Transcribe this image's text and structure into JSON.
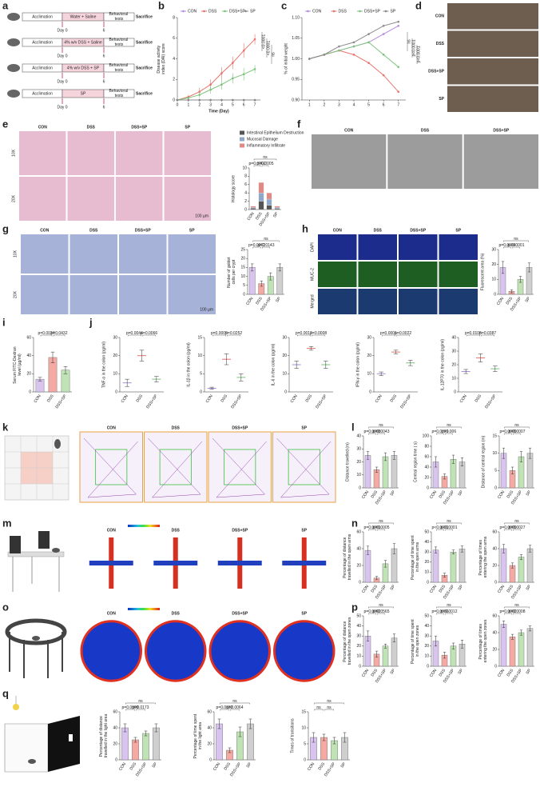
{
  "panel_letters": [
    "a",
    "b",
    "c",
    "d",
    "e",
    "f",
    "g",
    "h",
    "i",
    "j",
    "k",
    "l",
    "m",
    "n",
    "o",
    "p",
    "q"
  ],
  "schematic": {
    "rows": [
      [
        "Acclimation",
        "Water + Saline",
        "Behavioral tests",
        "Sacrifice"
      ],
      [
        "Acclimation",
        "4% w/v DSS + Saline",
        "Behavioral tests",
        "Sacrifice"
      ],
      [
        "Acclimation",
        "4% w/v DSS + SP",
        "Behavioral tests",
        "Sacrifice"
      ],
      [
        "Acclimation",
        "SP",
        "Behavioral tests",
        "Sacrifice"
      ]
    ],
    "day_labels": [
      "Day 0",
      "6"
    ]
  },
  "image_panels": [
    {
      "rows": [
        "CON",
        "DSS",
        "DSS+SP",
        "SP"
      ]
    },
    {
      "columns": [
        "CON",
        "DSS",
        "DSS+SP",
        "SP"
      ],
      "rows": [
        "10X",
        "20X"
      ],
      "scale_bar": "100 µm"
    },
    {
      "columns": [
        "CON",
        "DSS",
        "DSS+SP"
      ]
    },
    {
      "columns": [
        "CON",
        "DSS",
        "DSS+SP",
        "SP"
      ],
      "rows": [
        "10X",
        "20X"
      ],
      "scale_bar": "100 µm"
    },
    {
      "columns": [
        "CON",
        "DSS",
        "DSS+SP",
        "SP"
      ],
      "rows": [
        "DAPI",
        "MUC-2",
        "Merged"
      ]
    },
    {
      "columns": [
        "CON",
        "DSS",
        "DSS+SP",
        "SP"
      ]
    },
    {
      "columns": [
        "CON",
        "DSS",
        "DSS+SP",
        "SP"
      ]
    },
    {
      "columns": [
        "CON",
        "DSS",
        "DSS+SP",
        "SP"
      ]
    }
  ],
  "chart_data": [
    {
      "type": "line",
      "ylabel": "Disease activity index (DAI) score",
      "xlabel": "Time (Day)",
      "x": [
        0,
        1,
        2,
        3,
        4,
        5,
        6,
        7
      ],
      "xlim": [
        0,
        7.5
      ],
      "xticks": [
        0,
        1,
        2,
        3,
        4,
        5,
        6,
        7
      ],
      "ylim": [
        0,
        8
      ],
      "yticks": [
        0,
        2,
        4,
        6,
        8
      ],
      "series": [
        {
          "name": "CON",
          "color": "#b48be0",
          "values": [
            0,
            0,
            0,
            0,
            0,
            0,
            0,
            0
          ]
        },
        {
          "name": "DSS",
          "color": "#e8736c",
          "values": [
            0,
            0.3,
            0.8,
            1.5,
            2.6,
            3.6,
            4.8,
            5.9
          ],
          "errors": [
            0,
            0.2,
            0.4,
            0.5,
            0.6,
            0.6,
            0.7,
            0.5
          ]
        },
        {
          "name": "DSS+SP",
          "color": "#7cc47a",
          "values": [
            0,
            0.2,
            0.5,
            1.0,
            1.5,
            2.1,
            2.5,
            3.0
          ],
          "errors": [
            0,
            0.1,
            0.3,
            0.4,
            0.5,
            0.5,
            0.6,
            0.4
          ]
        },
        {
          "name": "SP",
          "color": "#8a8a8a",
          "values": [
            0,
            0,
            0,
            0,
            0,
            0,
            0,
            0
          ]
        }
      ],
      "annotations": [
        "<0.0001",
        "<0.0001",
        "ns"
      ]
    },
    {
      "type": "line",
      "ylabel": "% of initial weight",
      "x": [
        1,
        2,
        3,
        4,
        5,
        6,
        7
      ],
      "xlim": [
        0.5,
        7.5
      ],
      "xticks": [
        1,
        2,
        3,
        4,
        5,
        6,
        7
      ],
      "ylim": [
        0.9,
        1.1
      ],
      "yticks": [
        {
          "value": 0.9,
          "label": "0.90"
        },
        0.95,
        {
          "value": 1,
          "label": "1.00"
        },
        1.05,
        {
          "value": 1.1,
          "label": "1.10"
        }
      ],
      "series": [
        {
          "name": "CON",
          "color": "#b48be0",
          "values": [
            1,
            1.01,
            1.02,
            1.03,
            1.04,
            1.06,
            1.08
          ]
        },
        {
          "name": "DSS",
          "color": "#e8736c",
          "values": [
            1,
            1.01,
            1.02,
            1.01,
            0.99,
            0.96,
            0.92
          ]
        },
        {
          "name": "DSS+SP",
          "color": "#7cc47a",
          "values": [
            1,
            1.01,
            1.02,
            1.03,
            1.04,
            1.01,
            0.98
          ]
        },
        {
          "name": "SP",
          "color": "#8a8a8a",
          "values": [
            1,
            1.01,
            1.03,
            1.04,
            1.06,
            1.08,
            1.09
          ]
        }
      ],
      "annotations": [
        "ns",
        "p<0.0001",
        "p<0.0001"
      ]
    },
    {
      "type": "stacked_bar",
      "ylabel": "Histology score",
      "categories": [
        "CON",
        "DSS",
        "DSS+SP",
        "SP"
      ],
      "ylim": [
        0,
        10
      ],
      "yticks": [
        0,
        2,
        4,
        6,
        8,
        10
      ],
      "series": [
        {
          "name": "Intestinal Epithelium Destruction",
          "color": "#555555",
          "values": [
            0.3,
            2,
            1,
            0.2
          ]
        },
        {
          "name": "Mucosal Damage",
          "color": "#8fa8c8",
          "values": [
            0.2,
            2,
            1.5,
            0.3
          ]
        },
        {
          "name": "Inflammatory Infiltrate",
          "color": "#e08a86",
          "values": [
            0.3,
            2.5,
            1.5,
            0.3
          ]
        }
      ],
      "annotations": [
        "p=0.0002",
        "p=0.0005",
        "ns"
      ]
    },
    {
      "type": "bar",
      "ylabel": "Number of goblet cells per crypt",
      "categories": [
        "CON",
        "DSS",
        "DSS+SP",
        "SP"
      ],
      "values": [
        15,
        6,
        10,
        15
      ],
      "errors": [
        2,
        1.5,
        2,
        2
      ],
      "colors": [
        "#d8c4ee",
        "#f4a9a3",
        "#bfe3b5",
        "#cfcfcf"
      ],
      "ylim": [
        0,
        25
      ],
      "yticks": [
        0,
        5,
        10,
        15,
        20,
        25
      ],
      "annotations": [
        "p=0.0002",
        "p=0.0143",
        "ns"
      ]
    },
    {
      "type": "bar",
      "ylabel": "Fluorescent area (%)",
      "categories": [
        "CON",
        "DSS",
        "DSS+SP",
        "SP"
      ],
      "values": [
        18,
        2,
        10,
        18
      ],
      "errors": [
        4,
        1,
        2,
        3
      ],
      "colors": [
        "#d8c4ee",
        "#f4a9a3",
        "#bfe3b5",
        "#cfcfcf"
      ],
      "ylim": [
        0,
        30
      ],
      "yticks": [
        0,
        10,
        20,
        30
      ],
      "annotations": [
        "p=0.0004",
        "p<0.0001",
        "ns"
      ]
    },
    {
      "type": "bar",
      "ylabel": "Serum FITC-Dextran level (µg/ml)",
      "categories": [
        "CON",
        "DSS",
        "DSS+SP"
      ],
      "values": [
        14,
        38,
        24
      ],
      "errors": [
        2,
        6,
        4
      ],
      "colors": [
        "#d8c4ee",
        "#f4a9a3",
        "#bfe3b5"
      ],
      "ylim": [
        0,
        60
      ],
      "yticks": [
        0,
        20,
        40,
        60
      ],
      "annotations": [
        "p=0.0024",
        "p=0.0432"
      ]
    },
    {
      "type": "dot",
      "ylabel": "TNF-α in the colon (pg/ml)",
      "categories": [
        "CON",
        "DSS",
        "DSS+SP"
      ],
      "values": [
        5,
        20,
        7
      ],
      "errors": [
        2,
        3,
        1.5
      ],
      "colors": [
        "#a98fd6",
        "#e8736c",
        "#7cc47a"
      ],
      "ylim": [
        0,
        30
      ],
      "yticks": [
        0,
        10,
        20,
        30
      ],
      "annotations": [
        "p=0.0044",
        "p=0.0066"
      ]
    },
    {
      "type": "dot",
      "ylabel": "IL-1β in the colon (pg/ml)",
      "categories": [
        "CON",
        "DSS",
        "DSS+SP"
      ],
      "values": [
        1,
        9,
        4
      ],
      "errors": [
        0.3,
        1.5,
        1
      ],
      "colors": [
        "#a98fd6",
        "#e8736c",
        "#7cc47a"
      ],
      "ylim": [
        0,
        15
      ],
      "yticks": [
        0,
        5,
        10,
        15
      ],
      "annotations": [
        "p=0.0009",
        "p=0.0252"
      ]
    },
    {
      "type": "dot",
      "ylabel": "IL-6 in the colon (pg/ml)",
      "categories": [
        "CON",
        "DSS",
        "DSS+SP"
      ],
      "values": [
        15,
        24,
        15
      ],
      "errors": [
        2,
        1,
        2
      ],
      "colors": [
        "#a98fd6",
        "#e8736c",
        "#7cc47a"
      ],
      "ylim": [
        0,
        30
      ],
      "yticks": [
        0,
        10,
        20,
        30
      ],
      "annotations": [
        "p=0.0012",
        "p=0.0008"
      ]
    },
    {
      "type": "dot",
      "ylabel": "IFN-γ in the colon (pg/ml)",
      "categories": [
        "CON",
        "DSS",
        "DSS+SP"
      ],
      "values": [
        10,
        22,
        16
      ],
      "errors": [
        1,
        1,
        1.5
      ],
      "colors": [
        "#a98fd6",
        "#e8736c",
        "#7cc47a"
      ],
      "ylim": [
        0,
        30
      ],
      "yticks": [
        0,
        10,
        20,
        30
      ],
      "annotations": [
        "p=0.0001",
        "p=0.0022"
      ]
    },
    {
      "type": "dot",
      "ylabel": "IL-12P70 in the colon (pg/ml)",
      "categories": [
        "CON",
        "DSS",
        "DSS+SP"
      ],
      "values": [
        15,
        25,
        17
      ],
      "errors": [
        1.5,
        3,
        2
      ],
      "colors": [
        "#a98fd6",
        "#e8736c",
        "#7cc47a"
      ],
      "ylim": [
        0,
        40
      ],
      "yticks": [
        0,
        10,
        20,
        30,
        40
      ],
      "annotations": [
        "p=0.0106",
        "p=0.0387"
      ]
    },
    {
      "type": "bar",
      "ylabel": "Distance travelled (m)",
      "categories": [
        "CON",
        "DSS",
        "DSS+SP",
        "SP"
      ],
      "values": [
        25,
        14,
        24,
        25
      ],
      "errors": [
        3,
        2,
        3,
        3
      ],
      "colors": [
        "#d8c4ee",
        "#f4a9a3",
        "#bfe3b5",
        "#cfcfcf"
      ],
      "ylim": [
        0,
        40
      ],
      "yticks": [
        0,
        10,
        20,
        30,
        40
      ],
      "annotations": [
        "p=0.0008",
        "p=0.0043",
        "ns"
      ]
    },
    {
      "type": "bar",
      "ylabel": "Central region time ( s)",
      "categories": [
        "CON",
        "DSS",
        "DSS+SP",
        "SP"
      ],
      "values": [
        50,
        22,
        55,
        50
      ],
      "errors": [
        10,
        5,
        8,
        8
      ],
      "colors": [
        "#d8c4ee",
        "#f4a9a3",
        "#bfe3b5",
        "#cfcfcf"
      ],
      "ylim": [
        0,
        100
      ],
      "yticks": [
        0,
        20,
        40,
        60,
        80,
        100
      ],
      "annotations": [
        "p=0.0029",
        "p=0.006",
        "ns"
      ]
    },
    {
      "type": "bar",
      "ylabel": "Distance of central region (m)",
      "categories": [
        "CON",
        "DSS",
        "DSS+SP",
        "SP"
      ],
      "values": [
        10,
        5,
        9,
        10
      ],
      "errors": [
        1.5,
        1,
        1.5,
        1.5
      ],
      "colors": [
        "#d8c4ee",
        "#f4a9a3",
        "#bfe3b5",
        "#cfcfcf"
      ],
      "ylim": [
        0,
        15
      ],
      "yticks": [
        0,
        5,
        10,
        15
      ],
      "annotations": [
        "p=0.0009",
        "p=0.0007",
        "ns"
      ]
    },
    {
      "type": "bar",
      "ylabel": "Percentage of distance travelled in the open arms",
      "categories": [
        "CON",
        "DSS",
        "DSS+SP",
        "SP"
      ],
      "values": [
        38,
        5,
        22,
        40
      ],
      "errors": [
        5,
        2,
        4,
        6
      ],
      "colors": [
        "#d8c4ee",
        "#f4a9a3",
        "#bfe3b5",
        "#cfcfcf"
      ],
      "ylim": [
        0,
        60
      ],
      "yticks": [
        0,
        20,
        40,
        60
      ],
      "annotations": [
        "p=0.0001",
        "p=0.0005",
        "ns"
      ]
    },
    {
      "type": "bar",
      "ylabel": "Percentage of time spent in the open arms",
      "categories": [
        "CON",
        "DSS",
        "DSS+SP",
        "SP"
      ],
      "values": [
        32,
        7,
        30,
        33
      ],
      "errors": [
        3,
        2,
        2,
        3
      ],
      "colors": [
        "#d8c4ee",
        "#f4a9a3",
        "#bfe3b5",
        "#cfcfcf"
      ],
      "ylim": [
        0,
        50
      ],
      "yticks": [
        0,
        10,
        20,
        30,
        40,
        50
      ],
      "annotations": [
        "p<0.0001",
        "p<0.0001",
        "ns"
      ]
    },
    {
      "type": "bar",
      "ylabel": "Percentage of times entering the open arms",
      "categories": [
        "CON",
        "DSS",
        "DSS+SP",
        "SP"
      ],
      "values": [
        40,
        20,
        30,
        40
      ],
      "errors": [
        5,
        3,
        3,
        4
      ],
      "colors": [
        "#d8c4ee",
        "#f4a9a3",
        "#bfe3b5",
        "#cfcfcf"
      ],
      "ylim": [
        0,
        60
      ],
      "yticks": [
        0,
        20,
        40,
        60
      ],
      "annotations": [
        "p=0.0009",
        "p=0.0027",
        "ns"
      ]
    },
    {
      "type": "bar",
      "ylabel": "Percentage of distance travelled in the open zones",
      "categories": [
        "CON",
        "DSS",
        "DSS+SP",
        "SP"
      ],
      "values": [
        30,
        12,
        20,
        28
      ],
      "errors": [
        5,
        3,
        2,
        4
      ],
      "colors": [
        "#d8c4ee",
        "#f4a9a3",
        "#bfe3b5",
        "#cfcfcf"
      ],
      "ylim": [
        0,
        50
      ],
      "yticks": [
        0,
        10,
        20,
        30,
        40,
        50
      ],
      "annotations": [
        "p=0.0092",
        "p=0.0565",
        "ns"
      ]
    },
    {
      "type": "bar",
      "ylabel": "Percentage of time spent in the open zones",
      "categories": [
        "CON",
        "DSS",
        "DSS+SP",
        "SP"
      ],
      "values": [
        25,
        11,
        20,
        22
      ],
      "errors": [
        5,
        3,
        3,
        4
      ],
      "colors": [
        "#d8c4ee",
        "#f4a9a3",
        "#bfe3b5",
        "#cfcfcf"
      ],
      "ylim": [
        0,
        50
      ],
      "yticks": [
        0,
        10,
        20,
        30,
        40,
        50
      ],
      "annotations": [
        "p=0.0036",
        "p=0.0012",
        "ns"
      ]
    },
    {
      "type": "bar",
      "ylabel": "Percentage of times entering the open zones",
      "categories": [
        "CON",
        "DSS",
        "DSS+SP",
        "SP"
      ],
      "values": [
        50,
        35,
        40,
        45
      ],
      "errors": [
        4,
        3,
        3,
        3
      ],
      "colors": [
        "#d8c4ee",
        "#f4a9a3",
        "#bfe3b5",
        "#cfcfcf"
      ],
      "ylim": [
        0,
        60
      ],
      "yticks": [
        0,
        20,
        40,
        60
      ],
      "annotations": [
        "p=0.0002",
        "p=0.0008",
        "ns"
      ]
    },
    {
      "type": "bar",
      "ylabel": "Percentage of distance travelled in the light area",
      "categories": [
        "CON",
        "DSS",
        "DSS+SP",
        "SP"
      ],
      "values": [
        40,
        25,
        33,
        40
      ],
      "errors": [
        5,
        3,
        3,
        5
      ],
      "colors": [
        "#d8c4ee",
        "#f4a9a3",
        "#bfe3b5",
        "#cfcfcf"
      ],
      "ylim": [
        0,
        60
      ],
      "yticks": [
        0,
        20,
        40,
        60
      ],
      "annotations": [
        "p=0.0009",
        "p=0.0173",
        "ns"
      ]
    },
    {
      "type": "bar",
      "ylabel": "Percentage of time spent in the light area",
      "categories": [
        "CON",
        "DSS",
        "DSS+SP",
        "SP"
      ],
      "values": [
        45,
        12,
        35,
        45
      ],
      "errors": [
        6,
        3,
        6,
        6
      ],
      "colors": [
        "#d8c4ee",
        "#f4a9a3",
        "#bfe3b5",
        "#cfcfcf"
      ],
      "ylim": [
        0,
        60
      ],
      "yticks": [
        0,
        20,
        40,
        60
      ],
      "annotations": [
        "p=0.0032",
        "p=0.0064",
        "ns"
      ]
    },
    {
      "type": "bar",
      "ylabel": "Times of transitions",
      "categories": [
        "CON",
        "DSS",
        "DSS+SP",
        "SP"
      ],
      "values": [
        7,
        7,
        6,
        7
      ],
      "errors": [
        1.5,
        1,
        1,
        1.5
      ],
      "colors": [
        "#d8c4ee",
        "#f4a9a3",
        "#bfe3b5",
        "#cfcfcf"
      ],
      "ylim": [
        0,
        15
      ],
      "yticks": [
        0,
        5,
        10,
        15
      ],
      "annotations": [
        "ns",
        "ns",
        "ns"
      ]
    }
  ]
}
